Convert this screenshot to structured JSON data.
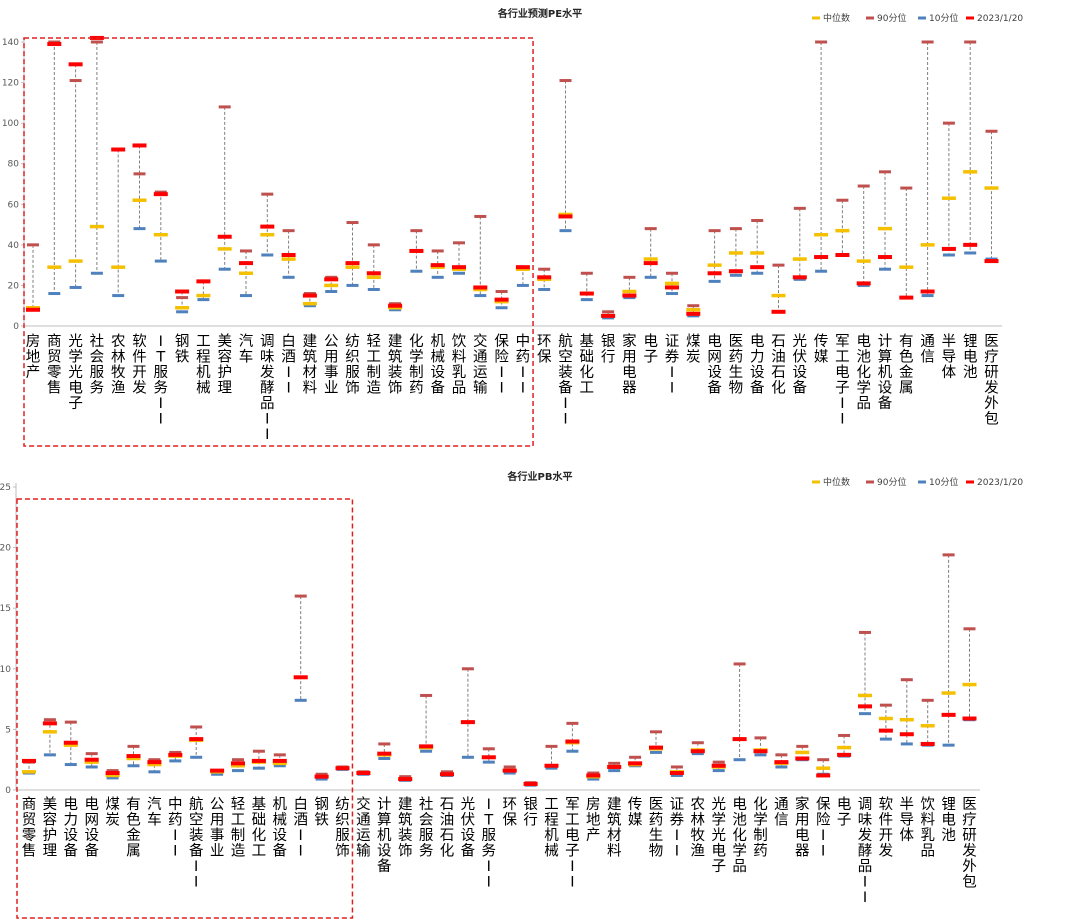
{
  "chart_data": [
    {
      "type": "range",
      "title": "各行业预测PE水平",
      "ylim": [
        0,
        140
      ],
      "yticks": [
        0,
        20,
        40,
        60,
        80,
        100,
        120,
        140
      ],
      "legend_position": "top-right",
      "legend": [
        {
          "name": "中位数",
          "color": "#f5c000"
        },
        {
          "name": "90分位",
          "color": "#c0504d"
        },
        {
          "name": "10分位",
          "color": "#4f81bd"
        },
        {
          "name": "2023/1/20",
          "color": "#ff0000"
        }
      ],
      "highlight_count": 24,
      "categories": [
        "房地产",
        "商贸零售",
        "光学光电子",
        "社会服务",
        "农林牧渔",
        "软件开发",
        "IT服务II",
        "钢铁",
        "工程机械",
        "美容护理",
        "汽车",
        "调味发酵品II",
        "白酒II",
        "建筑材料",
        "公用事业",
        "纺织服饰",
        "轻工制造",
        "建筑装饰",
        "化学制药",
        "机械设备",
        "饮料乳品",
        "交通运输",
        "保险II",
        "中药II",
        "环保",
        "航空装备II",
        "基础化工",
        "银行",
        "家用电器",
        "电子",
        "证券II",
        "煤炭",
        "电网设备",
        "医药生物",
        "电力设备",
        "石油石化",
        "光伏设备",
        "传媒",
        "军工电子II",
        "电池化学品",
        "计算机设备",
        "有色金属",
        "通信",
        "半导体",
        "锂电池",
        "医疗研发外包"
      ],
      "series": [
        {
          "name": "中位数",
          "values": [
            9,
            29,
            32,
            49,
            29,
            62,
            45,
            9,
            15,
            38,
            26,
            45,
            33,
            11,
            20,
            29,
            24,
            9,
            37,
            29,
            28,
            18,
            12,
            28,
            23,
            55,
            16,
            5,
            17,
            33,
            21,
            8,
            30,
            36,
            36,
            15,
            33,
            45,
            47,
            32,
            48,
            29,
            40,
            63,
            76,
            68
          ]
        },
        {
          "name": "90分位",
          "values": [
            40,
            140,
            121,
            143,
            87,
            75,
            66,
            14,
            22,
            108,
            37,
            65,
            47,
            16,
            24,
            51,
            40,
            11,
            47,
            37,
            41,
            54,
            17,
            29,
            28,
            121,
            26,
            7,
            24,
            48,
            26,
            10,
            47,
            48,
            52,
            30,
            58,
            150,
            62,
            69,
            76,
            68,
            150,
            100,
            150,
            96
          ]
        },
        {
          "name": "10分位",
          "values": [
            8,
            16,
            19,
            26,
            15,
            48,
            32,
            7,
            13,
            28,
            15,
            35,
            24,
            10,
            17,
            20,
            18,
            8,
            27,
            24,
            26,
            15,
            9,
            20,
            18,
            47,
            13,
            4,
            14,
            24,
            16,
            5,
            22,
            25,
            26,
            7,
            23,
            27,
            35,
            20,
            28,
            14,
            15,
            35,
            36,
            33
          ]
        },
        {
          "name": "2023/1/20",
          "values": [
            8,
            139,
            129,
            142,
            87,
            89,
            65,
            17,
            22,
            44,
            31,
            49,
            35,
            15,
            23,
            31,
            26,
            10,
            37,
            30,
            29,
            19,
            13,
            29,
            24,
            54,
            16,
            5,
            15,
            31,
            19,
            6,
            26,
            27,
            29,
            7,
            24,
            34,
            35,
            21,
            34,
            14,
            17,
            38,
            40,
            32
          ]
        }
      ]
    },
    {
      "type": "range",
      "title": "各行业PB水平",
      "ylim": [
        0,
        25
      ],
      "yticks": [
        0,
        5,
        10,
        15,
        20,
        25
      ],
      "legend_position": "top-right",
      "legend": [
        {
          "name": "中位数",
          "color": "#f5c000"
        },
        {
          "name": "90分位",
          "color": "#c0504d"
        },
        {
          "name": "10分位",
          "color": "#4f81bd"
        },
        {
          "name": "2023/1/20",
          "color": "#ff0000"
        }
      ],
      "highlight_count": 16,
      "categories": [
        "商贸零售",
        "美容护理",
        "电力设备",
        "电网设备",
        "煤炭",
        "有色金属",
        "汽车",
        "中药II",
        "航空装备II",
        "公用事业",
        "轻工制造",
        "基础化工",
        "机械设备",
        "白酒II",
        "钢铁",
        "纺织服饰",
        "交通运输",
        "计算机设备",
        "建筑装饰",
        "社会服务",
        "石油石化",
        "光伏设备",
        "IT服务II",
        "环保",
        "银行",
        "工程机械",
        "军工电子II",
        "房地产",
        "建筑材料",
        "传媒",
        "医药生物",
        "证券II",
        "农林牧渔",
        "光学光电子",
        "电池化学品",
        "化学制药",
        "通信",
        "家用电器",
        "保险II",
        "电子",
        "调味发酵品II",
        "软件开发",
        "半导体",
        "饮料乳品",
        "锂电池",
        "医疗研发外包"
      ],
      "series": [
        {
          "name": "中位数",
          "values": [
            1.5,
            4.8,
            3.7,
            2.3,
            1.2,
            2.6,
            2.1,
            2.8,
            4.1,
            1.5,
            2.0,
            2.3,
            2.2,
            9.3,
            1.1,
            1.8,
            1.4,
            2.9,
            0.9,
            3.5,
            1.3,
            5.6,
            2.7,
            1.6,
            0.5,
            2.0,
            3.9,
            1.1,
            1.9,
            2.1,
            3.4,
            1.5,
            3.3,
            1.9,
            4.2,
            3.3,
            2.2,
            3.1,
            1.8,
            3.5,
            7.8,
            5.9,
            5.8,
            5.3,
            8.0,
            8.7
          ]
        },
        {
          "name": "90分位",
          "values": [
            2.3,
            5.8,
            5.6,
            3.0,
            1.6,
            3.6,
            2.5,
            3.1,
            5.2,
            1.6,
            2.5,
            3.2,
            2.9,
            16.0,
            1.3,
            1.9,
            1.5,
            3.8,
            1.1,
            7.8,
            1.5,
            10.0,
            3.4,
            1.9,
            0.6,
            3.6,
            5.5,
            1.4,
            2.2,
            2.7,
            4.8,
            1.9,
            3.9,
            2.3,
            10.4,
            4.3,
            2.9,
            3.6,
            2.5,
            4.5,
            13.0,
            7.0,
            9.1,
            7.4,
            19.4,
            13.3
          ]
        },
        {
          "name": "10分位",
          "values": [
            1.4,
            2.9,
            2.1,
            1.9,
            1.0,
            2.0,
            1.5,
            2.4,
            2.7,
            1.3,
            1.6,
            1.8,
            2.0,
            7.4,
            0.9,
            1.7,
            1.3,
            2.6,
            0.8,
            3.2,
            1.2,
            2.7,
            2.3,
            1.4,
            0.4,
            1.8,
            3.2,
            0.9,
            1.6,
            2.0,
            3.1,
            1.2,
            3.0,
            1.6,
            2.5,
            2.9,
            1.9,
            2.5,
            1.3,
            2.8,
            6.3,
            4.2,
            3.8,
            3.7,
            3.7,
            5.8
          ]
        },
        {
          "name": "2023/1/20",
          "values": [
            2.4,
            5.5,
            3.9,
            2.5,
            1.4,
            2.8,
            2.3,
            2.9,
            4.2,
            1.6,
            2.2,
            2.4,
            2.4,
            9.3,
            1.1,
            1.8,
            1.4,
            3.0,
            0.9,
            3.6,
            1.3,
            5.6,
            2.7,
            1.6,
            0.5,
            2.0,
            4.0,
            1.2,
            1.9,
            2.2,
            3.5,
            1.4,
            3.2,
            2.0,
            4.2,
            3.2,
            2.3,
            2.6,
            1.2,
            2.9,
            6.9,
            4.9,
            4.6,
            3.8,
            6.2,
            5.9
          ]
        }
      ]
    }
  ]
}
